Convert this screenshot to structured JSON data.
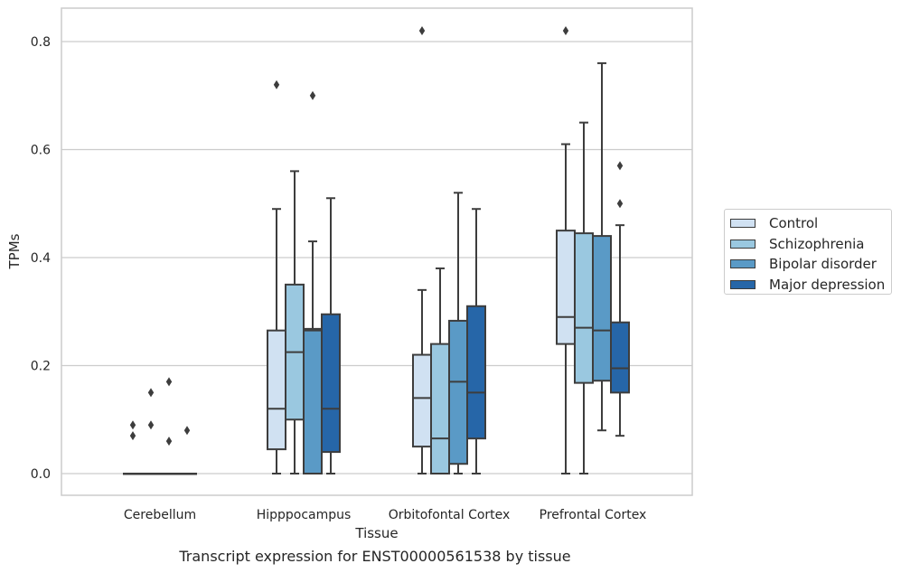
{
  "chart_data": {
    "type": "box",
    "xlabel": "Tissue",
    "ylabel": "TPMs",
    "caption": "Transcript expression for ENST00000561538 by tissue",
    "categories": [
      "Cerebellum",
      "Hipppocampus",
      "Orbitofontal Cortex",
      "Prefrontal Cortex"
    ],
    "ylim": [
      -0.04,
      0.86
    ],
    "yticks": [
      0.0,
      0.2,
      0.4,
      0.6,
      0.8
    ],
    "ytick_labels": [
      "0.0",
      "0.2",
      "0.4",
      "0.6",
      "0.8"
    ],
    "grid": "horizontal",
    "legend_position": "right",
    "series": [
      {
        "name": "Control",
        "color": "#d0e1f2",
        "boxes": [
          {
            "min": 0,
            "q1": 0,
            "median": 0,
            "q3": 0,
            "max": 0,
            "outliers": [
              0.09,
              0.07
            ]
          },
          {
            "min": 0,
            "q1": 0.045,
            "median": 0.12,
            "q3": 0.265,
            "max": 0.49,
            "outliers": [
              0.72
            ]
          },
          {
            "min": 0,
            "q1": 0.05,
            "median": 0.14,
            "q3": 0.22,
            "max": 0.34,
            "outliers": [
              0.82
            ]
          },
          {
            "min": 0,
            "q1": 0.24,
            "median": 0.29,
            "q3": 0.45,
            "max": 0.61,
            "outliers": [
              0.82
            ]
          }
        ]
      },
      {
        "name": "Schizophrenia",
        "color": "#9ac8e0",
        "boxes": [
          {
            "min": 0,
            "q1": 0,
            "median": 0,
            "q3": 0,
            "max": 0,
            "outliers": [
              0.15,
              0.09
            ]
          },
          {
            "min": 0,
            "q1": 0.1,
            "median": 0.225,
            "q3": 0.35,
            "max": 0.56,
            "outliers": []
          },
          {
            "min": 0,
            "q1": 0,
            "median": 0.065,
            "q3": 0.24,
            "max": 0.38,
            "outliers": []
          },
          {
            "min": 0,
            "q1": 0.168,
            "median": 0.27,
            "q3": 0.445,
            "max": 0.65,
            "outliers": []
          }
        ]
      },
      {
        "name": "Bipolar disorder",
        "color": "#5a9ac6",
        "boxes": [
          {
            "min": 0,
            "q1": 0,
            "median": 0,
            "q3": 0,
            "max": 0,
            "outliers": [
              0.17,
              0.06
            ]
          },
          {
            "min": 0,
            "q1": 0,
            "median": 0.265,
            "q3": 0.268,
            "max": 0.43,
            "outliers": [
              0.7
            ]
          },
          {
            "min": 0,
            "q1": 0.018,
            "median": 0.17,
            "q3": 0.283,
            "max": 0.52,
            "outliers": []
          },
          {
            "min": 0.08,
            "q1": 0.172,
            "median": 0.265,
            "q3": 0.44,
            "max": 0.76,
            "outliers": []
          }
        ]
      },
      {
        "name": "Major depression",
        "color": "#2666a8",
        "boxes": [
          {
            "min": 0,
            "q1": 0,
            "median": 0,
            "q3": 0,
            "max": 0,
            "outliers": [
              0.08
            ]
          },
          {
            "min": 0,
            "q1": 0.04,
            "median": 0.12,
            "q3": 0.295,
            "max": 0.51,
            "outliers": []
          },
          {
            "min": 0,
            "q1": 0.065,
            "median": 0.15,
            "q3": 0.31,
            "max": 0.49,
            "outliers": []
          },
          {
            "min": 0.07,
            "q1": 0.15,
            "median": 0.195,
            "q3": 0.28,
            "max": 0.46,
            "outliers": [
              0.5,
              0.57
            ]
          }
        ]
      }
    ]
  }
}
